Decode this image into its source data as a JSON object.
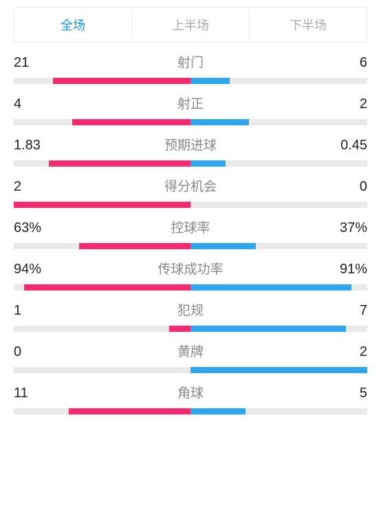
{
  "colors": {
    "active_tab_text": "#1296db",
    "inactive_tab_text": "#aaaaaa",
    "left_bar": "#f72a6f",
    "right_bar": "#2ca7f0",
    "bar_bg": "#e9e9e9",
    "stat_label": "#888888",
    "stat_value": "#222222"
  },
  "tabs": [
    {
      "label": "全场",
      "active": true
    },
    {
      "label": "上半场",
      "active": false
    },
    {
      "label": "下半场",
      "active": false
    }
  ],
  "stats": [
    {
      "label": "射门",
      "left_value": "21",
      "right_value": "6",
      "left_pct": 78,
      "right_pct": 22
    },
    {
      "label": "射正",
      "left_value": "4",
      "right_value": "2",
      "left_pct": 67,
      "right_pct": 33
    },
    {
      "label": "预期进球",
      "left_value": "1.83",
      "right_value": "0.45",
      "left_pct": 80,
      "right_pct": 20
    },
    {
      "label": "得分机会",
      "left_value": "2",
      "right_value": "0",
      "left_pct": 100,
      "right_pct": 0
    },
    {
      "label": "控球率",
      "left_value": "63%",
      "right_value": "37%",
      "left_pct": 63,
      "right_pct": 37
    },
    {
      "label": "传球成功率",
      "left_value": "94%",
      "right_value": "91%",
      "left_pct": 94,
      "right_pct": 91
    },
    {
      "label": "犯规",
      "left_value": "1",
      "right_value": "7",
      "left_pct": 12,
      "right_pct": 88
    },
    {
      "label": "黄牌",
      "left_value": "0",
      "right_value": "2",
      "left_pct": 0,
      "right_pct": 100
    },
    {
      "label": "角球",
      "left_value": "11",
      "right_value": "5",
      "left_pct": 69,
      "right_pct": 31
    }
  ]
}
